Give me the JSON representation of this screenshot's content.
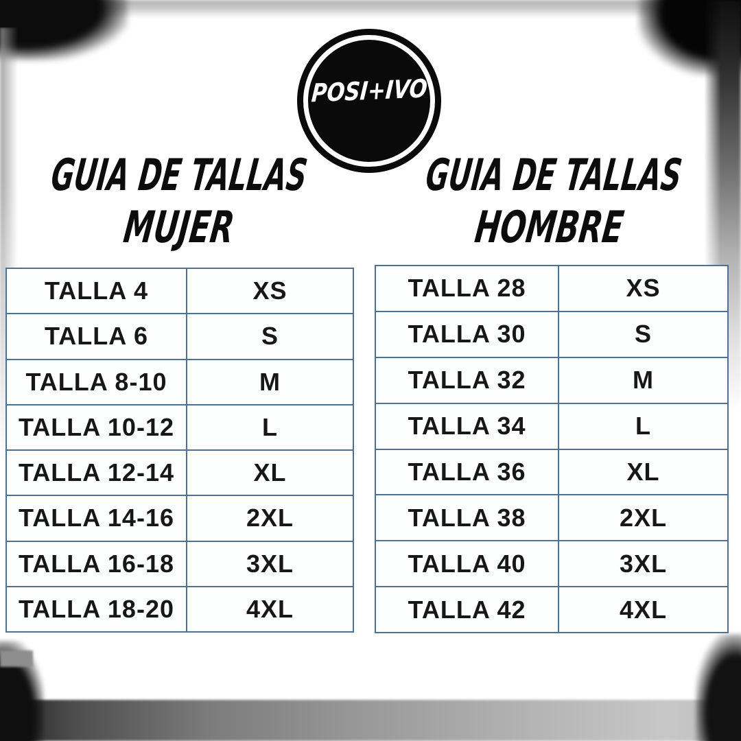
{
  "poster": {
    "logo": {
      "brand": "POSI+IVO"
    },
    "women": {
      "title_line1": "GUIA DE TALLAS",
      "title_line2": "MUJER",
      "rows": [
        {
          "talla": "TALLA 4",
          "size": "XS"
        },
        {
          "talla": "TALLA 6",
          "size": "S"
        },
        {
          "talla": "TALLA 8-10",
          "size": "M"
        },
        {
          "talla": "TALLA 10-12",
          "size": "L"
        },
        {
          "talla": "TALLA 12-14",
          "size": "XL"
        },
        {
          "talla": "TALLA 14-16",
          "size": "2XL"
        },
        {
          "talla": "TALLA 16-18",
          "size": "3XL"
        },
        {
          "talla": "TALLA 18-20",
          "size": "4XL"
        }
      ]
    },
    "men": {
      "title_line1": "GUIA DE TALLAS",
      "title_line2": "HOMBRE",
      "rows": [
        {
          "talla": "TALLA 28",
          "size": "XS"
        },
        {
          "talla": "TALLA 30",
          "size": "S"
        },
        {
          "talla": "TALLA 32",
          "size": "M"
        },
        {
          "talla": "TALLA 34",
          "size": "L"
        },
        {
          "talla": "TALLA 36",
          "size": "XL"
        },
        {
          "talla": "TALLA 38",
          "size": "2XL"
        },
        {
          "talla": "TALLA 40",
          "size": "3XL"
        },
        {
          "talla": "TALLA 42",
          "size": "4XL"
        }
      ]
    },
    "colors": {
      "table_border": "#4e7193",
      "table_text": "#171717",
      "badge_bg": "#0a0a0a",
      "badge_text": "#ffffff",
      "frame_dark": "#0c0c0c"
    }
  }
}
